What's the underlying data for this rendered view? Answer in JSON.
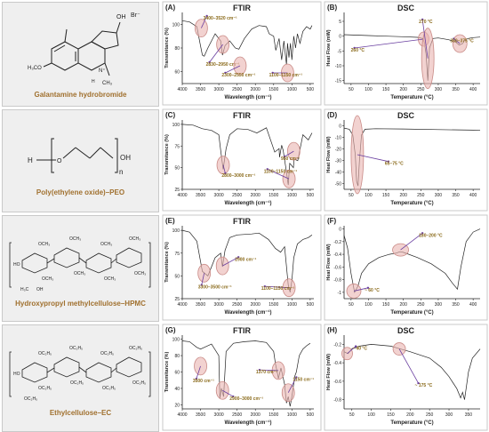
{
  "rows": [
    {
      "compound": "Galantamine hydrobromide",
      "ftir": {
        "letter": "(A)",
        "title": "FTIR",
        "xlabel": "Wavelength (cm⁻¹)",
        "ylabel": "Transmitance (%)",
        "yticks": [
          60,
          80,
          100
        ],
        "ylim": [
          50,
          110
        ],
        "annotations": [
          "3400–3520 cm⁻¹",
          "2830–2950 cm⁻¹",
          "2300–2550 cm⁻¹",
          "1100–1150 cm⁻¹"
        ]
      },
      "dsc": {
        "letter": "(B)",
        "title": "DSC",
        "xlabel": "Temperature (°C)",
        "ylabel": "Heat Flow (mW)",
        "yticks": [
          -15,
          -10,
          -5,
          0,
          5
        ],
        "ylim": [
          -16,
          8
        ],
        "xticks": [
          50,
          100,
          150,
          200,
          250,
          300,
          350,
          400
        ],
        "annotations": [
          "260 °C",
          "270 °C",
          "350–375 °C"
        ]
      }
    },
    {
      "compound": "Poly(ethylene oxide)–PEO",
      "ftir": {
        "letter": "(C)",
        "title": "FTIR",
        "xlabel": "Wavelength (cm⁻¹)",
        "ylabel": "Transmitance (%)",
        "yticks": [
          25,
          50,
          75,
          100
        ],
        "ylim": [
          25,
          105
        ],
        "annotations": [
          "2800–3000 cm⁻¹",
          "950 cm⁻¹",
          "1100–1150 cm⁻¹"
        ]
      },
      "dsc": {
        "letter": "(D)",
        "title": "DSC",
        "xlabel": "Temperature (°C)",
        "ylabel": "Heat Flow (mW)",
        "yticks": [
          -50,
          -40,
          -30,
          -20,
          -10,
          0
        ],
        "ylim": [
          -55,
          5
        ],
        "xticks": [
          50,
          100,
          150,
          200,
          250,
          300,
          350,
          400
        ],
        "annotations": [
          "65–75 °C"
        ]
      }
    },
    {
      "compound": "Hydroxypropyl methylcellulose–HPMC",
      "ftir": {
        "letter": "(E)",
        "title": "FTIR",
        "xlabel": "Wavelength (cm⁻¹)",
        "ylabel": "Transmitance (%)",
        "yticks": [
          25,
          50,
          75,
          100
        ],
        "ylim": [
          25,
          105
        ],
        "annotations": [
          "3300–3500 cm⁻¹",
          "2900 cm⁻¹",
          "1100–1150 cm⁻¹"
        ]
      },
      "dsc": {
        "letter": "(F)",
        "title": "",
        "xlabel": "Temperature (°C)",
        "ylabel": "Heat Flow (mW)",
        "yticks": [
          -1.0,
          -0.8,
          -0.6,
          -0.4,
          -0.2,
          0.0
        ],
        "ylim": [
          -1.1,
          0.05
        ],
        "xticks": [
          50,
          100,
          150,
          200,
          250,
          300,
          350,
          400
        ],
        "annotations": [
          "~ 60 °C",
          "180–200 °C"
        ]
      }
    },
    {
      "compound": "Ethylcellulose–EC",
      "ftir": {
        "letter": "(G)",
        "title": "FTIR",
        "xlabel": "Wavelength (cm⁻¹)",
        "ylabel": "Transmitance (%)",
        "yticks": [
          20,
          40,
          60,
          80,
          100
        ],
        "ylim": [
          15,
          105
        ],
        "annotations": [
          "3500 cm⁻¹",
          "2900–3000 cm⁻¹",
          "1370 cm⁻¹",
          "1150 cm⁻¹"
        ]
      },
      "dsc": {
        "letter": "(H)",
        "title": "DSC",
        "xlabel": "Temperature (°C)",
        "ylabel": "Heat Flow (mW)",
        "yticks": [
          -0.8,
          -0.6,
          -0.4,
          -0.2
        ],
        "ylim": [
          -0.9,
          -0.1
        ],
        "xticks": [
          50,
          100,
          150,
          200,
          250,
          300,
          350
        ],
        "annotations": [
          "~ 40 °C",
          "~ 175 °C"
        ]
      }
    }
  ],
  "ftir_xticks": [
    4000,
    3500,
    3000,
    2500,
    2000,
    1500,
    1000,
    500
  ],
  "colors": {
    "compound_label": "#a0702e",
    "highlight_fill": "#e9b4b0",
    "highlight_stroke": "#c98a86",
    "arrow": "#6a3fa0",
    "annotation_text": "#8a6a1a"
  },
  "chart_data": [
    {
      "type": "line",
      "title": "FTIR",
      "panel": "(A)",
      "xlabel": "Wavelength (cm⁻¹)",
      "ylabel": "Transmitance (%)",
      "xlim": [
        4000,
        400
      ],
      "ylim": [
        50,
        110
      ],
      "x": [
        4000,
        3800,
        3600,
        3520,
        3450,
        3400,
        3300,
        3100,
        2950,
        2900,
        2830,
        2700,
        2550,
        2450,
        2300,
        2100,
        1900,
        1700,
        1620,
        1500,
        1440,
        1350,
        1280,
        1220,
        1150,
        1120,
        1080,
        1040,
        1000,
        950,
        900,
        850,
        780,
        700,
        600,
        500,
        450
      ],
      "y": [
        103,
        102,
        98,
        85,
        74,
        73,
        80,
        92,
        86,
        74,
        82,
        86,
        80,
        79,
        88,
        96,
        99,
        98,
        92,
        90,
        78,
        88,
        70,
        86,
        66,
        84,
        72,
        84,
        70,
        90,
        80,
        92,
        84,
        94,
        98,
        96,
        99
      ]
    },
    {
      "type": "line",
      "title": "DSC",
      "panel": "(B)",
      "xlabel": "Temperature (°C)",
      "ylabel": "Heat Flow (mW)",
      "xlim": [
        30,
        420
      ],
      "ylim": [
        -16,
        8
      ],
      "x": [
        30,
        100,
        150,
        200,
        240,
        255,
        260,
        265,
        270,
        275,
        285,
        300,
        330,
        350,
        360,
        370,
        375,
        385,
        400,
        420
      ],
      "y": [
        0.5,
        0.2,
        0.0,
        -0.2,
        -0.4,
        -0.8,
        -2.0,
        -6.0,
        -15.0,
        -4.0,
        -0.8,
        -0.6,
        -1.2,
        -2.0,
        -3.0,
        -2.5,
        -1.5,
        -0.8,
        -0.5,
        -0.3
      ]
    },
    {
      "type": "line",
      "title": "FTIR",
      "panel": "(C)",
      "xlabel": "Wavelength (cm⁻¹)",
      "ylabel": "Transmitance (%)",
      "xlim": [
        4000,
        400
      ],
      "ylim": [
        25,
        105
      ],
      "x": [
        4000,
        3700,
        3450,
        3200,
        3000,
        2950,
        2880,
        2800,
        2700,
        2500,
        2200,
        1960,
        1700,
        1470,
        1350,
        1340,
        1280,
        1240,
        1150,
        1100,
        1060,
        960,
        940,
        840,
        700,
        550,
        450
      ],
      "y": [
        100,
        99,
        95,
        93,
        88,
        70,
        48,
        72,
        88,
        95,
        94,
        90,
        96,
        68,
        72,
        62,
        76,
        70,
        45,
        30,
        55,
        50,
        60,
        58,
        88,
        82,
        90
      ]
    },
    {
      "type": "line",
      "title": "DSC",
      "panel": "(D)",
      "xlabel": "Temperature (°C)",
      "ylabel": "Heat Flow (mW)",
      "xlim": [
        30,
        420
      ],
      "ylim": [
        -55,
        5
      ],
      "x": [
        30,
        45,
        55,
        62,
        66,
        70,
        74,
        80,
        90,
        120,
        200,
        300,
        400,
        420
      ],
      "y": [
        -2,
        -3,
        -8,
        -25,
        -48,
        -52,
        -30,
        -8,
        -3,
        -2.5,
        -2.8,
        -3.3,
        -3.8,
        -4.0
      ]
    },
    {
      "type": "line",
      "title": "FTIR",
      "panel": "(E)",
      "xlabel": "Wavelength (cm⁻¹)",
      "ylabel": "Transmitance (%)",
      "xlim": [
        4000,
        400
      ],
      "ylim": [
        25,
        105
      ],
      "x": [
        4000,
        3800,
        3600,
        3450,
        3300,
        3100,
        2950,
        2900,
        2830,
        2700,
        2500,
        2100,
        1900,
        1640,
        1450,
        1375,
        1310,
        1200,
        1100,
        1050,
        1000,
        950,
        850,
        700,
        550,
        450
      ],
      "y": [
        100,
        98,
        88,
        55,
        50,
        70,
        75,
        60,
        78,
        92,
        95,
        96,
        97,
        90,
        80,
        78,
        76,
        82,
        40,
        32,
        45,
        70,
        85,
        90,
        92,
        95
      ]
    },
    {
      "type": "line",
      "title": "",
      "panel": "(F)",
      "xlabel": "Temperature (°C)",
      "ylabel": "Heat Flow (mW)",
      "xlim": [
        30,
        420
      ],
      "ylim": [
        -1.1,
        0.05
      ],
      "x": [
        30,
        40,
        50,
        60,
        70,
        80,
        100,
        130,
        160,
        180,
        190,
        200,
        240,
        280,
        320,
        340,
        355,
        365,
        380,
        400,
        420
      ],
      "y": [
        -0.1,
        -0.3,
        -0.7,
        -1.0,
        -0.9,
        -0.7,
        -0.55,
        -0.45,
        -0.4,
        -0.38,
        -0.36,
        -0.37,
        -0.45,
        -0.55,
        -0.7,
        -0.85,
        -0.95,
        -0.6,
        -0.2,
        -0.05,
        0.0
      ]
    },
    {
      "type": "line",
      "title": "FTIR",
      "panel": "(G)",
      "xlabel": "Wavelength (cm⁻¹)",
      "ylabel": "Transmitance (%)",
      "xlim": [
        4000,
        400
      ],
      "ylim": [
        15,
        105
      ],
      "x": [
        4000,
        3800,
        3600,
        3500,
        3400,
        3200,
        3000,
        2970,
        2930,
        2870,
        2800,
        2600,
        2300,
        2000,
        1700,
        1500,
        1450,
        1380,
        1370,
        1300,
        1200,
        1150,
        1100,
        1050,
        1000,
        920,
        880,
        800,
        700,
        600,
        500
      ],
      "y": [
        98,
        97,
        90,
        88,
        90,
        94,
        80,
        28,
        40,
        30,
        85,
        95,
        97,
        98,
        96,
        85,
        70,
        55,
        52,
        65,
        45,
        22,
        30,
        18,
        30,
        55,
        60,
        80,
        88,
        92,
        95
      ]
    },
    {
      "type": "line",
      "title": "DSC",
      "panel": "(H)",
      "xlabel": "Temperature (°C)",
      "ylabel": "Heat Flow (mW)",
      "xlim": [
        30,
        380
      ],
      "ylim": [
        -0.9,
        -0.1
      ],
      "x": [
        30,
        40,
        50,
        70,
        100,
        150,
        175,
        200,
        250,
        280,
        300,
        320,
        330,
        335,
        340,
        345,
        350,
        360,
        380
      ],
      "y": [
        -0.28,
        -0.3,
        -0.25,
        -0.22,
        -0.2,
        -0.22,
        -0.25,
        -0.28,
        -0.35,
        -0.45,
        -0.55,
        -0.68,
        -0.78,
        -0.72,
        -0.8,
        -0.65,
        -0.5,
        -0.35,
        -0.25
      ]
    }
  ]
}
